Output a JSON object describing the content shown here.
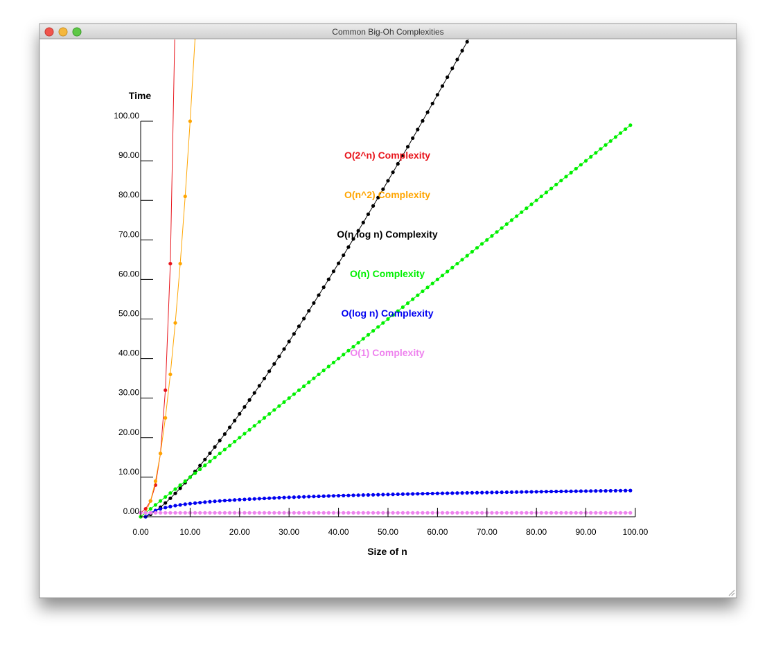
{
  "window": {
    "title": "Common Big-Oh Complexities"
  },
  "chart_data": {
    "type": "line",
    "xlabel": "Size of n",
    "ylabel": "Time",
    "xlim": [
      0,
      100
    ],
    "ylim": [
      0,
      120
    ],
    "xticks": [
      {
        "value": 0,
        "label": "0.00"
      },
      {
        "value": 10,
        "label": "10.00"
      },
      {
        "value": 20,
        "label": "20.00"
      },
      {
        "value": 30,
        "label": "30.00"
      },
      {
        "value": 40,
        "label": "40.00"
      },
      {
        "value": 50,
        "label": "50.00"
      },
      {
        "value": 60,
        "label": "60.00"
      },
      {
        "value": 70,
        "label": "70.00"
      },
      {
        "value": 80,
        "label": "80.00"
      },
      {
        "value": 90,
        "label": "90.00"
      },
      {
        "value": 100,
        "label": "100.00"
      }
    ],
    "yticks": [
      {
        "value": 0,
        "label": "0.00"
      },
      {
        "value": 10,
        "label": "10.00"
      },
      {
        "value": 20,
        "label": "20.00"
      },
      {
        "value": 30,
        "label": "30.00"
      },
      {
        "value": 40,
        "label": "40.00"
      },
      {
        "value": 50,
        "label": "50.00"
      },
      {
        "value": 60,
        "label": "60.00"
      },
      {
        "value": 70,
        "label": "70.00"
      },
      {
        "value": 80,
        "label": "80.00"
      },
      {
        "value": 90,
        "label": "90.00"
      },
      {
        "value": 100,
        "label": "100.00"
      }
    ],
    "series": [
      {
        "name": "O(2^n) Complexity",
        "color": "#e8141b",
        "x": [
          0,
          1,
          2,
          3,
          4,
          5,
          6,
          7
        ],
        "values": [
          1,
          2,
          4,
          8,
          16,
          32,
          64,
          128
        ]
      },
      {
        "name": "O(n^2) Complexity",
        "color": "#ffa500",
        "x": [
          0,
          1,
          2,
          3,
          4,
          5,
          6,
          7,
          8,
          9,
          10,
          11
        ],
        "values": [
          0,
          1,
          4,
          9,
          16,
          25,
          36,
          49,
          64,
          81,
          100,
          121
        ]
      },
      {
        "name": "O(n log n) Complexity",
        "color": "#000000",
        "x": [
          1,
          2,
          3,
          4,
          5,
          6,
          7,
          8,
          9,
          10,
          11,
          12,
          13,
          14,
          15,
          16,
          17,
          18,
          19,
          20,
          21,
          22,
          23,
          24,
          25,
          26,
          27,
          28,
          29,
          30,
          31,
          32,
          33,
          34,
          35,
          36,
          37,
          38,
          39,
          40,
          41,
          42,
          43,
          44,
          45,
          46,
          47,
          48,
          49,
          50,
          51,
          52,
          53,
          54,
          55,
          56,
          57,
          58,
          59,
          60,
          61,
          62,
          63,
          64,
          65,
          66,
          67
        ],
        "values": [
          0,
          0.6,
          1.43,
          2.41,
          3.49,
          4.67,
          5.92,
          7.22,
          8.59,
          10,
          11.46,
          12.95,
          14.48,
          16.05,
          17.64,
          19.27,
          20.92,
          22.6,
          24.3,
          26.02,
          27.77,
          29.53,
          31.32,
          33.12,
          34.95,
          36.79,
          38.65,
          40.52,
          42.41,
          44.31,
          46.23,
          48.16,
          50.11,
          52.07,
          54.04,
          56.03,
          58.02,
          60.03,
          62.05,
          64.08,
          66.12,
          68.18,
          70.24,
          72.31,
          74.39,
          76.49,
          78.59,
          80.7,
          82.82,
          84.95,
          87.09,
          89.23,
          91.39,
          93.55,
          95.72,
          97.9,
          100.09,
          102.28,
          104.48,
          106.69,
          108.9,
          111.13,
          113.36,
          115.6,
          117.84,
          120.09,
          122.35
        ]
      },
      {
        "name": "O(n) Complexity",
        "color": "#00f000",
        "x": [
          0,
          1,
          2,
          3,
          4,
          5,
          6,
          7,
          8,
          9,
          10,
          11,
          12,
          13,
          14,
          15,
          16,
          17,
          18,
          19,
          20,
          21,
          22,
          23,
          24,
          25,
          26,
          27,
          28,
          29,
          30,
          31,
          32,
          33,
          34,
          35,
          36,
          37,
          38,
          39,
          40,
          41,
          42,
          43,
          44,
          45,
          46,
          47,
          48,
          49,
          50,
          51,
          52,
          53,
          54,
          55,
          56,
          57,
          58,
          59,
          60,
          61,
          62,
          63,
          64,
          65,
          66,
          67,
          68,
          69,
          70,
          71,
          72,
          73,
          74,
          75,
          76,
          77,
          78,
          79,
          80,
          81,
          82,
          83,
          84,
          85,
          86,
          87,
          88,
          89,
          90,
          91,
          92,
          93,
          94,
          95,
          96,
          97,
          98,
          99
        ],
        "values": [
          0,
          1,
          2,
          3,
          4,
          5,
          6,
          7,
          8,
          9,
          10,
          11,
          12,
          13,
          14,
          15,
          16,
          17,
          18,
          19,
          20,
          21,
          22,
          23,
          24,
          25,
          26,
          27,
          28,
          29,
          30,
          31,
          32,
          33,
          34,
          35,
          36,
          37,
          38,
          39,
          40,
          41,
          42,
          43,
          44,
          45,
          46,
          47,
          48,
          49,
          50,
          51,
          52,
          53,
          54,
          55,
          56,
          57,
          58,
          59,
          60,
          61,
          62,
          63,
          64,
          65,
          66,
          67,
          68,
          69,
          70,
          71,
          72,
          73,
          74,
          75,
          76,
          77,
          78,
          79,
          80,
          81,
          82,
          83,
          84,
          85,
          86,
          87,
          88,
          89,
          90,
          91,
          92,
          93,
          94,
          95,
          96,
          97,
          98,
          99
        ]
      },
      {
        "name": "O(log n) Complexity",
        "color": "#0000f0",
        "x": [
          1,
          2,
          3,
          4,
          5,
          6,
          7,
          8,
          9,
          10,
          11,
          12,
          13,
          14,
          15,
          16,
          17,
          18,
          19,
          20,
          21,
          22,
          23,
          24,
          25,
          26,
          27,
          28,
          29,
          30,
          31,
          32,
          33,
          34,
          35,
          36,
          37,
          38,
          39,
          40,
          41,
          42,
          43,
          44,
          45,
          46,
          47,
          48,
          49,
          50,
          51,
          52,
          53,
          54,
          55,
          56,
          57,
          58,
          59,
          60,
          61,
          62,
          63,
          64,
          65,
          66,
          67,
          68,
          69,
          70,
          71,
          72,
          73,
          74,
          75,
          76,
          77,
          78,
          79,
          80,
          81,
          82,
          83,
          84,
          85,
          86,
          87,
          88,
          89,
          90,
          91,
          92,
          93,
          94,
          95,
          96,
          97,
          98,
          99
        ],
        "values": [
          0,
          1,
          1.58,
          2,
          2.32,
          2.58,
          2.81,
          3,
          3.17,
          3.32,
          3.46,
          3.58,
          3.7,
          3.81,
          3.91,
          4,
          4.09,
          4.17,
          4.25,
          4.32,
          4.39,
          4.46,
          4.52,
          4.58,
          4.64,
          4.7,
          4.75,
          4.81,
          4.86,
          4.91,
          4.95,
          5,
          5.04,
          5.09,
          5.13,
          5.17,
          5.21,
          5.25,
          5.29,
          5.32,
          5.36,
          5.39,
          5.43,
          5.46,
          5.49,
          5.52,
          5.55,
          5.58,
          5.61,
          5.64,
          5.67,
          5.7,
          5.73,
          5.75,
          5.78,
          5.81,
          5.83,
          5.86,
          5.88,
          5.91,
          5.93,
          5.95,
          5.98,
          6,
          6.02,
          6.04,
          6.07,
          6.09,
          6.11,
          6.13,
          6.15,
          6.17,
          6.19,
          6.21,
          6.23,
          6.25,
          6.27,
          6.29,
          6.3,
          6.32,
          6.34,
          6.36,
          6.38,
          6.39,
          6.41,
          6.43,
          6.44,
          6.46,
          6.48,
          6.49,
          6.51,
          6.52,
          6.54,
          6.55,
          6.57,
          6.58,
          6.6,
          6.61,
          6.63
        ]
      },
      {
        "name": "O(1) Complexity",
        "color": "#ee82ee",
        "x": [
          0,
          1,
          2,
          3,
          4,
          5,
          6,
          7,
          8,
          9,
          10,
          11,
          12,
          13,
          14,
          15,
          16,
          17,
          18,
          19,
          20,
          21,
          22,
          23,
          24,
          25,
          26,
          27,
          28,
          29,
          30,
          31,
          32,
          33,
          34,
          35,
          36,
          37,
          38,
          39,
          40,
          41,
          42,
          43,
          44,
          45,
          46,
          47,
          48,
          49,
          50,
          51,
          52,
          53,
          54,
          55,
          56,
          57,
          58,
          59,
          60,
          61,
          62,
          63,
          64,
          65,
          66,
          67,
          68,
          69,
          70,
          71,
          72,
          73,
          74,
          75,
          76,
          77,
          78,
          79,
          80,
          81,
          82,
          83,
          84,
          85,
          86,
          87,
          88,
          89,
          90,
          91,
          92,
          93,
          94,
          95,
          96,
          97,
          98,
          99
        ],
        "values": [
          1,
          1,
          1,
          1,
          1,
          1,
          1,
          1,
          1,
          1,
          1,
          1,
          1,
          1,
          1,
          1,
          1,
          1,
          1,
          1,
          1,
          1,
          1,
          1,
          1,
          1,
          1,
          1,
          1,
          1,
          1,
          1,
          1,
          1,
          1,
          1,
          1,
          1,
          1,
          1,
          1,
          1,
          1,
          1,
          1,
          1,
          1,
          1,
          1,
          1,
          1,
          1,
          1,
          1,
          1,
          1,
          1,
          1,
          1,
          1,
          1,
          1,
          1,
          1,
          1,
          1,
          1,
          1,
          1,
          1,
          1,
          1,
          1,
          1,
          1,
          1,
          1,
          1,
          1,
          1,
          1,
          1,
          1,
          1,
          1,
          1,
          1,
          1,
          1,
          1,
          1,
          1,
          1,
          1,
          1,
          1,
          1,
          1,
          1,
          1
        ]
      }
    ]
  }
}
